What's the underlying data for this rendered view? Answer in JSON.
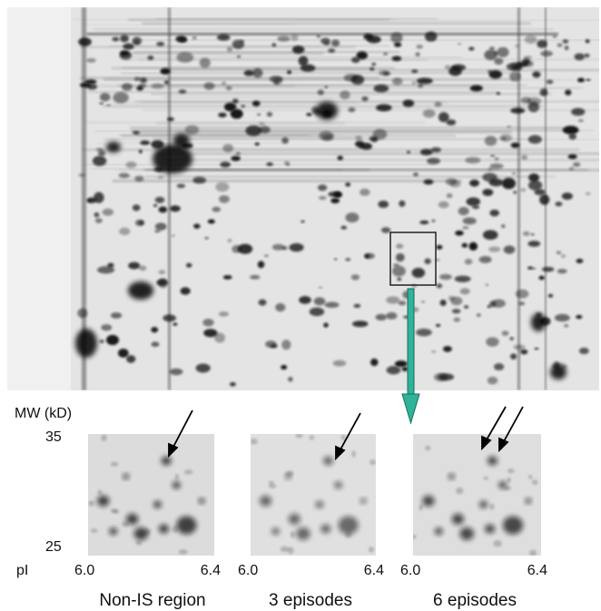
{
  "axis": {
    "mw_label": "MW (kD)",
    "mw_top": "35",
    "mw_bottom": "25",
    "pi_label": "pI"
  },
  "panels": [
    {
      "pi_left": "6.0",
      "pi_right": "6.4",
      "caption": "Non-IS region"
    },
    {
      "pi_left": "6.0",
      "pi_right": "6.4",
      "caption": "3 episodes"
    },
    {
      "pi_left": "6.0",
      "pi_right": "6.4",
      "caption": "6 episodes"
    }
  ]
}
